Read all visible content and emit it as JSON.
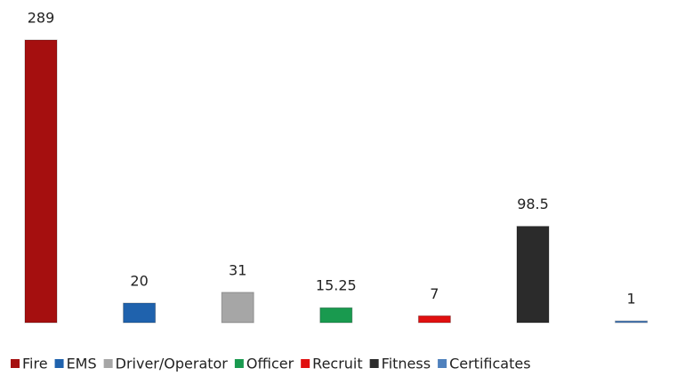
{
  "chart_data": {
    "type": "bar",
    "series": [
      {
        "name": "Fire",
        "color": "#a50f0f",
        "values": [
          289
        ]
      },
      {
        "name": "EMS",
        "color": "#1f62ad",
        "values": [
          20
        ]
      },
      {
        "name": "Driver/Operator",
        "color": "#a6a6a6",
        "values": [
          31
        ]
      },
      {
        "name": "Officer",
        "color": "#199a4f",
        "values": [
          15.25
        ]
      },
      {
        "name": "Recruit",
        "color": "#e01010",
        "values": [
          7
        ]
      },
      {
        "name": "Fitness",
        "color": "#2b2b2b",
        "values": [
          98.5
        ]
      },
      {
        "name": "Certificates",
        "color": "#4f81bd",
        "values": [
          1
        ]
      }
    ]
  }
}
